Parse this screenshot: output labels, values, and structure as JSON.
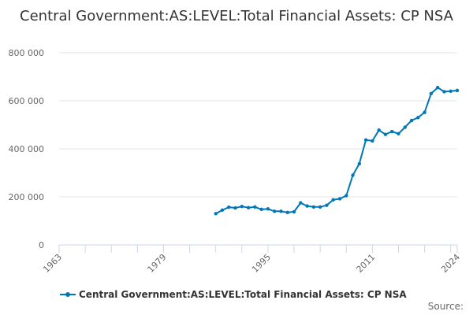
{
  "title": "Central Government:AS:LEVEL:Total Financial Assets: CP NSA",
  "source_label": "Source:",
  "colors": {
    "series": "#0077b6",
    "grid": "#e6e6e6",
    "axis": "#ccd6eb"
  },
  "chart_data": {
    "type": "line",
    "title": "Central Government:AS:LEVEL:Total Financial Assets: CP NSA",
    "xlim": [
      1963,
      2024
    ],
    "ylim": [
      0,
      800000
    ],
    "x_ticks": [
      1963,
      1979,
      1995,
      2011,
      2024
    ],
    "x_tick_labels": [
      "1963",
      "1979",
      "1995",
      "2011",
      "2024"
    ],
    "y_ticks": [
      0,
      200000,
      400000,
      600000,
      800000
    ],
    "y_tick_labels": [
      "0",
      "200 000",
      "400 000",
      "600 000",
      "800 000"
    ],
    "grid": "horizontal",
    "legend_position": "bottom",
    "series": [
      {
        "name": "Central Government:AS:LEVEL:Total Financial Assets: CP NSA",
        "x": [
          1987,
          1988,
          1989,
          1990,
          1991,
          1992,
          1993,
          1994,
          1995,
          1996,
          1997,
          1998,
          1999,
          2000,
          2001,
          2002,
          2003,
          2004,
          2005,
          2006,
          2007,
          2008,
          2009,
          2010,
          2011,
          2012,
          2013,
          2014,
          2015,
          2016,
          2017,
          2018,
          2019,
          2020,
          2021,
          2022,
          2023,
          2024
        ],
        "values": [
          130000,
          145000,
          157000,
          154000,
          160000,
          155000,
          158000,
          148000,
          150000,
          140000,
          140000,
          135000,
          138000,
          175000,
          162000,
          158000,
          158000,
          165000,
          188000,
          192000,
          205000,
          290000,
          338000,
          437000,
          433000,
          478000,
          460000,
          472000,
          463000,
          490000,
          518000,
          530000,
          552000,
          630000,
          655000,
          638000,
          640000,
          643000
        ]
      }
    ]
  }
}
